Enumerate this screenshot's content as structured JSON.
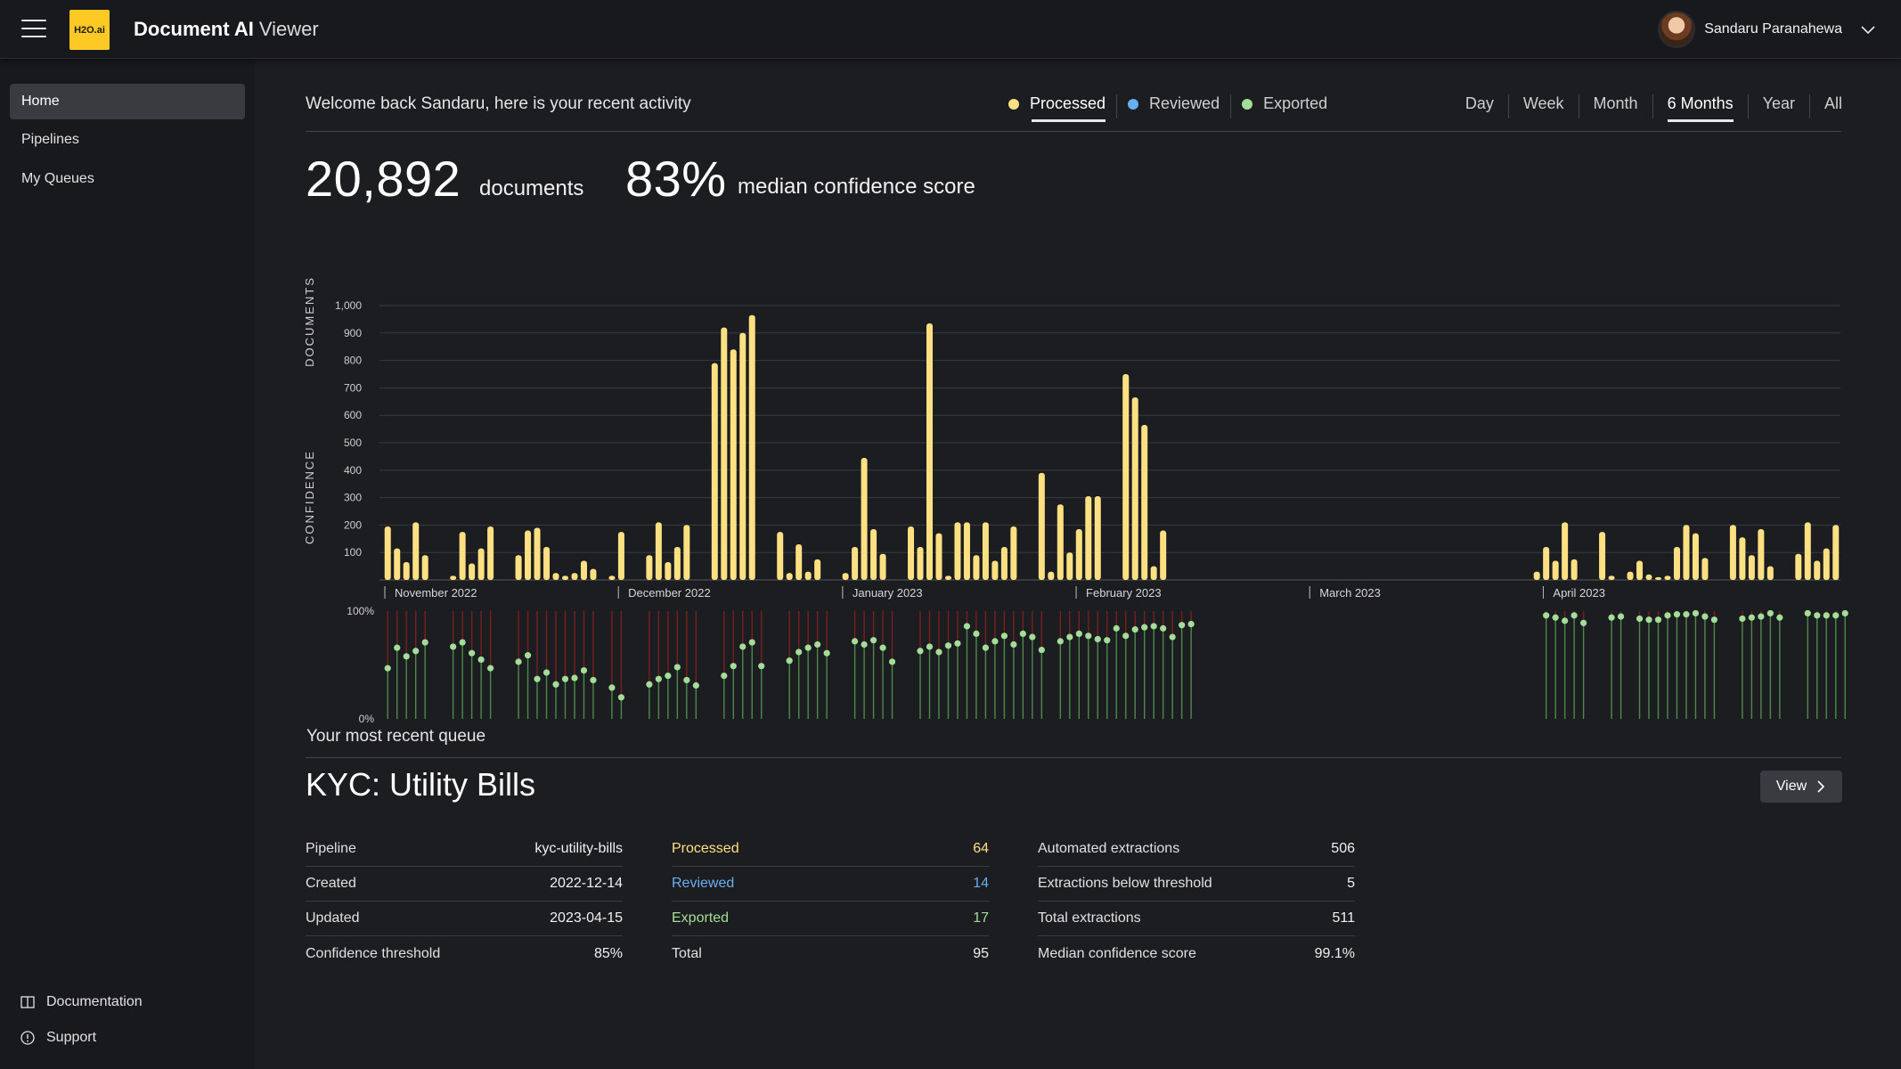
{
  "header": {
    "logo_text": "H2O.ai",
    "app_name": "Document AI",
    "app_mode": "Viewer",
    "user_name": "Sandaru Paranahewa"
  },
  "sidebar": {
    "items": [
      {
        "label": "Home"
      },
      {
        "label": "Pipelines"
      },
      {
        "label": "My Queues"
      }
    ],
    "footer": [
      {
        "label": "Documentation",
        "icon": "book-icon"
      },
      {
        "label": "Support",
        "icon": "info-icon"
      }
    ]
  },
  "activity": {
    "welcome": "Welcome back Sandaru, here is your recent activity",
    "legend": [
      {
        "label": "Processed",
        "color": "#fde082"
      },
      {
        "label": "Reviewed",
        "color": "#6aaef2"
      },
      {
        "label": "Exported",
        "color": "#a4dd98"
      }
    ],
    "ranges": [
      "Day",
      "Week",
      "Month",
      "6 Months",
      "Year",
      "All"
    ],
    "selected_range": "6 Months",
    "documents_count": "20,892",
    "documents_label": "documents",
    "confidence_value": "83%",
    "confidence_label": "median confidence score"
  },
  "chart_data": {
    "type": "bar",
    "ylabel": "DOCUMENTS",
    "ylim": [
      0,
      1000
    ],
    "yticks": [
      "100",
      "200",
      "300",
      "400",
      "500",
      "600",
      "700",
      "800",
      "900",
      "1,000"
    ],
    "bar_color": "#fde082",
    "values": [
      195,
      115,
      65,
      210,
      90,
      null,
      null,
      15,
      175,
      60,
      115,
      195,
      null,
      null,
      90,
      180,
      190,
      120,
      25,
      15,
      25,
      70,
      40,
      null,
      15,
      175,
      null,
      null,
      90,
      210,
      65,
      120,
      200,
      null,
      null,
      790,
      920,
      840,
      900,
      965,
      null,
      null,
      175,
      25,
      130,
      30,
      75,
      null,
      null,
      25,
      120,
      445,
      185,
      95,
      null,
      null,
      195,
      120,
      935,
      170,
      15,
      210,
      210,
      90,
      210,
      70,
      120,
      195,
      null,
      null,
      390,
      30,
      275,
      100,
      185,
      305,
      305,
      null,
      null,
      750,
      665,
      565,
      50,
      180,
      null,
      null,
      null,
      null,
      null,
      null,
      null,
      null,
      null,
      null,
      null,
      null,
      null,
      null,
      null,
      null,
      null,
      null,
      null,
      null,
      null,
      null,
      null,
      null,
      null,
      null,
      null,
      null,
      null,
      null,
      null,
      null,
      null,
      null,
      null,
      null,
      null,
      null,
      null,
      30,
      120,
      70,
      210,
      75,
      null,
      null,
      175,
      15,
      null,
      30,
      70,
      20,
      10,
      15,
      120,
      200,
      170,
      80,
      null,
      null,
      200,
      155,
      90,
      185,
      50,
      null,
      null,
      95,
      210,
      70,
      115,
      200
    ],
    "months": [
      {
        "label": "November 2022",
        "start_index": 0
      },
      {
        "label": "December 2022",
        "start_index": 25
      },
      {
        "label": "January 2023",
        "start_index": 49
      },
      {
        "label": "February 2023",
        "start_index": 74
      },
      {
        "label": "March 2023",
        "start_index": 99
      },
      {
        "label": "April 2023",
        "start_index": 124
      }
    ],
    "confidence": {
      "ylabel": "CONFIDENCE",
      "yticks": [
        "100%",
        "0%"
      ],
      "values": [
        47,
        66,
        58,
        63,
        71,
        null,
        null,
        67,
        71,
        61,
        55,
        47,
        null,
        null,
        53,
        59,
        37,
        43,
        32,
        37,
        38,
        45,
        36,
        null,
        29,
        20,
        null,
        null,
        32,
        37,
        40,
        48,
        36,
        31,
        null,
        null,
        40,
        49,
        67,
        71,
        49,
        null,
        null,
        54,
        62,
        66,
        69,
        61,
        null,
        null,
        72,
        69,
        73,
        66,
        53,
        null,
        null,
        63,
        67,
        62,
        68,
        70,
        86,
        79,
        66,
        72,
        77,
        69,
        79,
        76,
        64,
        null,
        72,
        76,
        79,
        77,
        74,
        73,
        84,
        77,
        83,
        85,
        86,
        84,
        76,
        87,
        88,
        null,
        null,
        null,
        null,
        null,
        null,
        null,
        null,
        null,
        null,
        null,
        null,
        null,
        null,
        null,
        null,
        null,
        null,
        null,
        null,
        null,
        null,
        null,
        null,
        null,
        null,
        null,
        null,
        null,
        null,
        null,
        null,
        null,
        null,
        null,
        null,
        null,
        96,
        94,
        91,
        96,
        89,
        null,
        null,
        94,
        95,
        null,
        93,
        92,
        92,
        96,
        97,
        97,
        98,
        95,
        92,
        null,
        null,
        93,
        94,
        95,
        98,
        94,
        null,
        null,
        98,
        96,
        96,
        96,
        98
      ],
      "low_color": "#a4dd98",
      "stem_low_color": "#4e8a4c",
      "stem_high_color": "#7a1f1f"
    }
  },
  "queue": {
    "heading": "Your most recent queue",
    "title": "KYC: Utility Bills",
    "view_label": "View",
    "details": [
      {
        "label": "Pipeline",
        "value": "kyc-utility-bills"
      },
      {
        "label": "Created",
        "value": "2022-12-14"
      },
      {
        "label": "Updated",
        "value": "2023-04-15"
      },
      {
        "label": "Confidence threshold",
        "value": "85%"
      }
    ],
    "counts": [
      {
        "label": "Processed",
        "value": "64",
        "color": "#fde082"
      },
      {
        "label": "Reviewed",
        "value": "14",
        "color": "#6aaef2"
      },
      {
        "label": "Exported",
        "value": "17",
        "color": "#a4dd98"
      },
      {
        "label": "Total",
        "value": "95",
        "color": "#e0e0e0"
      }
    ],
    "extractions": [
      {
        "label": "Automated extractions",
        "value": "506"
      },
      {
        "label": "Extractions below threshold",
        "value": "5"
      },
      {
        "label": "Total extractions",
        "value": "511"
      },
      {
        "label": "Median confidence score",
        "value": "99.1%"
      }
    ]
  }
}
